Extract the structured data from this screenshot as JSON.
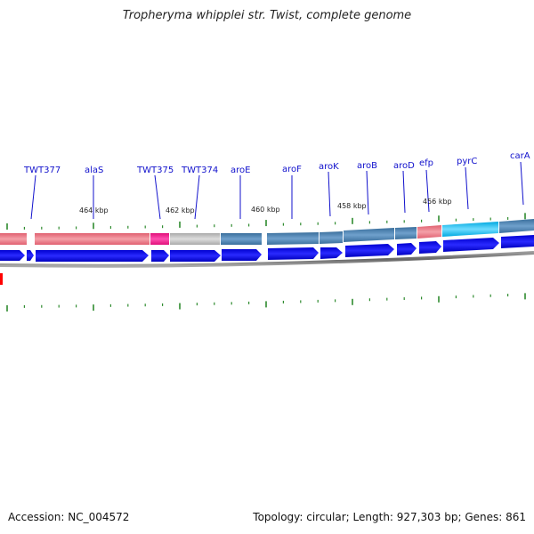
{
  "title": "Tropheryma whipplei str. Twist, complete genome",
  "footer": {
    "accession": "Accession: NC_004572",
    "summary": "Topology: circular; Length: 927,303 bp; Genes: 861"
  },
  "gene_labels": [
    {
      "name": "TWT377"
    },
    {
      "name": "alaS"
    },
    {
      "name": "TWT375"
    },
    {
      "name": "TWT374"
    },
    {
      "name": "aroE"
    },
    {
      "name": "aroF"
    },
    {
      "name": "aroK"
    },
    {
      "name": "aroB"
    },
    {
      "name": "aroD"
    },
    {
      "name": "efp"
    },
    {
      "name": "pyrC"
    },
    {
      "name": "carA"
    }
  ],
  "kbp_labels": [
    "464 kbp",
    "462 kbp",
    "460 kbp",
    "458 kbp",
    "456 kbp"
  ],
  "colors": {
    "gene_label": "#1010cc",
    "tick": "#2e8b2e",
    "forward_arrow": "#0000e6",
    "backbone": "#7a7a7a",
    "cog_pink": "#f08080",
    "cog_magenta": "#ff1493",
    "cog_gray": "#c0c0c0",
    "cog_steelblue": "#4682b4",
    "cog_cyan": "#00bfff",
    "marker_red": "#ff0000"
  }
}
